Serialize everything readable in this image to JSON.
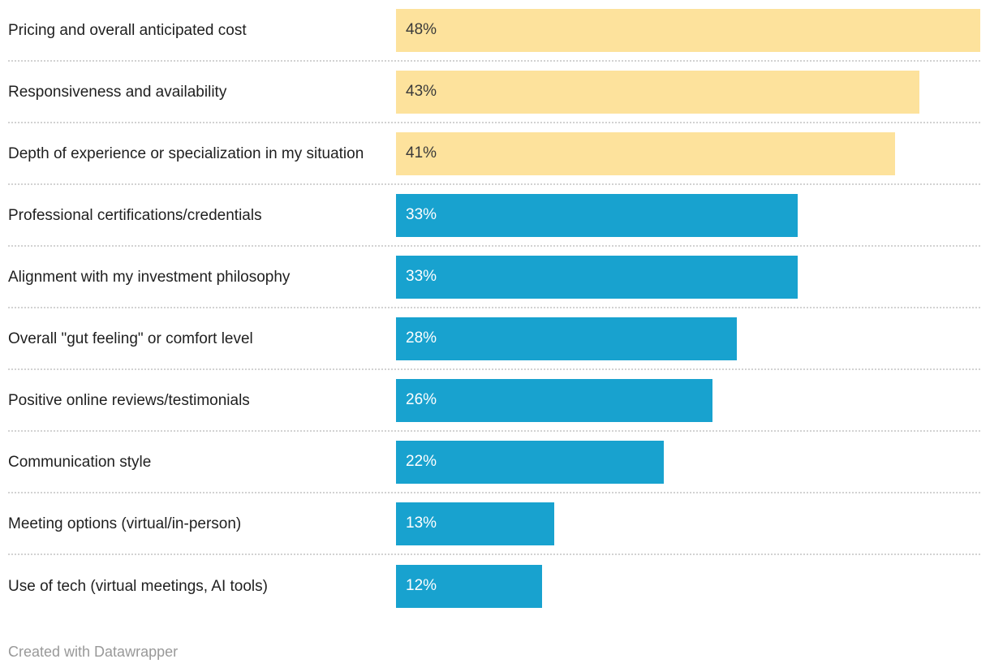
{
  "chart_data": {
    "type": "bar",
    "orientation": "horizontal",
    "title": "",
    "categories": [
      "Pricing and overall anticipated cost",
      "Responsiveness and availability",
      "Depth of experience or specialization in my situation",
      "Professional certifications/credentials",
      "Alignment with my investment philosophy",
      "Overall \"gut feeling\" or comfort level",
      "Positive online reviews/testimonials",
      "Communication style",
      "Meeting options (virtual/in-person)",
      "Use of tech (virtual meetings, AI tools)"
    ],
    "values": [
      48,
      43,
      41,
      33,
      33,
      28,
      26,
      22,
      13,
      12
    ],
    "value_labels": [
      "48%",
      "43%",
      "41%",
      "33%",
      "33%",
      "28%",
      "26%",
      "22%",
      "13%",
      "12%"
    ],
    "xlim": [
      0,
      48
    ],
    "highlighted_indices": [
      0,
      1,
      2
    ],
    "grid": "off",
    "legend": "none",
    "value_label_position": "inside-left"
  },
  "footer": {
    "credit": "Created with Datawrapper"
  },
  "colors": {
    "highlight_bar": "#fde29c",
    "default_bar": "#18a2cf",
    "label_text": "#1f1f1f",
    "value_text_on_highlight": "#3a3a3a",
    "value_text_on_default": "#ffffff",
    "separator": "#d2d2d2",
    "credit_text": "#999999",
    "background": "#ffffff"
  }
}
